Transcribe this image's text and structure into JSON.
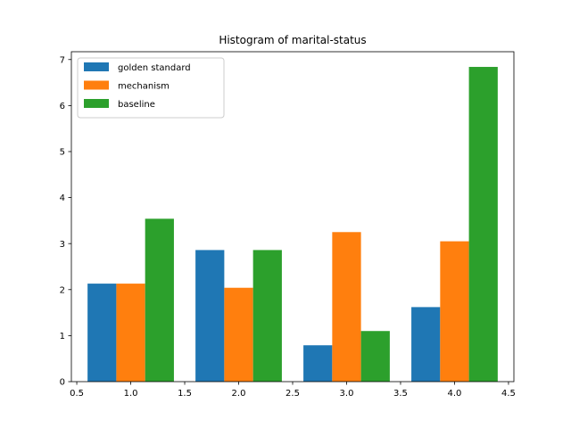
{
  "chart_data": {
    "type": "bar",
    "title": "Histogram of marital-status",
    "xlabel": "",
    "ylabel": "",
    "x": [
      1,
      2,
      3,
      4
    ],
    "xlim": [
      0.45,
      4.55
    ],
    "ylim": [
      0,
      7.17
    ],
    "xticks": [
      0.5,
      1.0,
      1.5,
      2.0,
      2.5,
      3.0,
      3.5,
      4.0,
      4.5
    ],
    "xtick_labels": [
      "0.5",
      "1.0",
      "1.5",
      "2.0",
      "2.5",
      "3.0",
      "3.5",
      "4.0",
      "4.5"
    ],
    "yticks": [
      0,
      1,
      2,
      3,
      4,
      5,
      6,
      7
    ],
    "ytick_labels": [
      "0",
      "1",
      "2",
      "3",
      "4",
      "5",
      "6",
      "7"
    ],
    "bar_width": 0.2667,
    "grid": false,
    "legend_position": "top-left",
    "series": [
      {
        "name": "golden standard",
        "color": "#1f77b4",
        "values": [
          2.13,
          2.86,
          0.79,
          1.62
        ]
      },
      {
        "name": "mechanism",
        "color": "#ff7f0e",
        "values": [
          2.13,
          2.04,
          3.25,
          3.05
        ]
      },
      {
        "name": "baseline",
        "color": "#2ca02c",
        "values": [
          3.54,
          2.86,
          1.1,
          6.84
        ]
      }
    ]
  }
}
